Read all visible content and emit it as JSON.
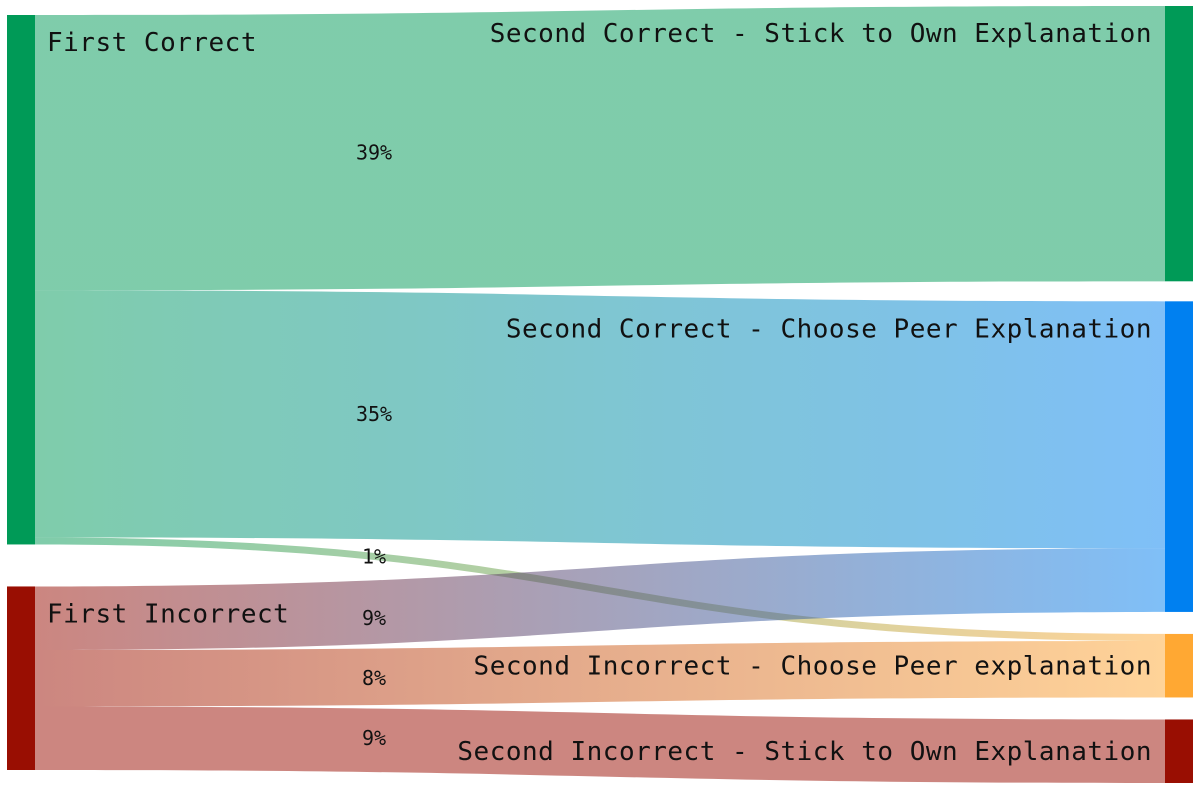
{
  "chart_data": {
    "type": "sankey",
    "nodes": [
      {
        "id": "fc",
        "label": "First Correct",
        "color": "#009A57",
        "side": "left"
      },
      {
        "id": "fi",
        "label": "First Incorrect",
        "color": "#990E02",
        "side": "left"
      },
      {
        "id": "sc_own",
        "label": "Second Correct - Stick to Own Explanation",
        "color": "#009A57",
        "side": "right"
      },
      {
        "id": "sc_peer",
        "label": "Second Correct - Choose Peer Explanation",
        "color": "#0080F0",
        "side": "right"
      },
      {
        "id": "si_peer",
        "label": "Second Incorrect - Choose Peer explanation",
        "color": "#FFA833",
        "side": "right"
      },
      {
        "id": "si_own",
        "label": "Second Incorrect - Stick to Own Explanation",
        "color": "#990E02",
        "side": "right"
      }
    ],
    "links": [
      {
        "source": "fc",
        "target": "sc_own",
        "value": 39,
        "label": "39%"
      },
      {
        "source": "fc",
        "target": "sc_peer",
        "value": 35,
        "label": "35%"
      },
      {
        "source": "fc",
        "target": "si_peer",
        "value": 1,
        "label": "1%"
      },
      {
        "source": "fi",
        "target": "sc_peer",
        "value": 9,
        "label": "9%"
      },
      {
        "source": "fi",
        "target": "si_peer",
        "value": 8,
        "label": "8%"
      },
      {
        "source": "fi",
        "target": "si_own",
        "value": 9,
        "label": "9%"
      }
    ]
  }
}
